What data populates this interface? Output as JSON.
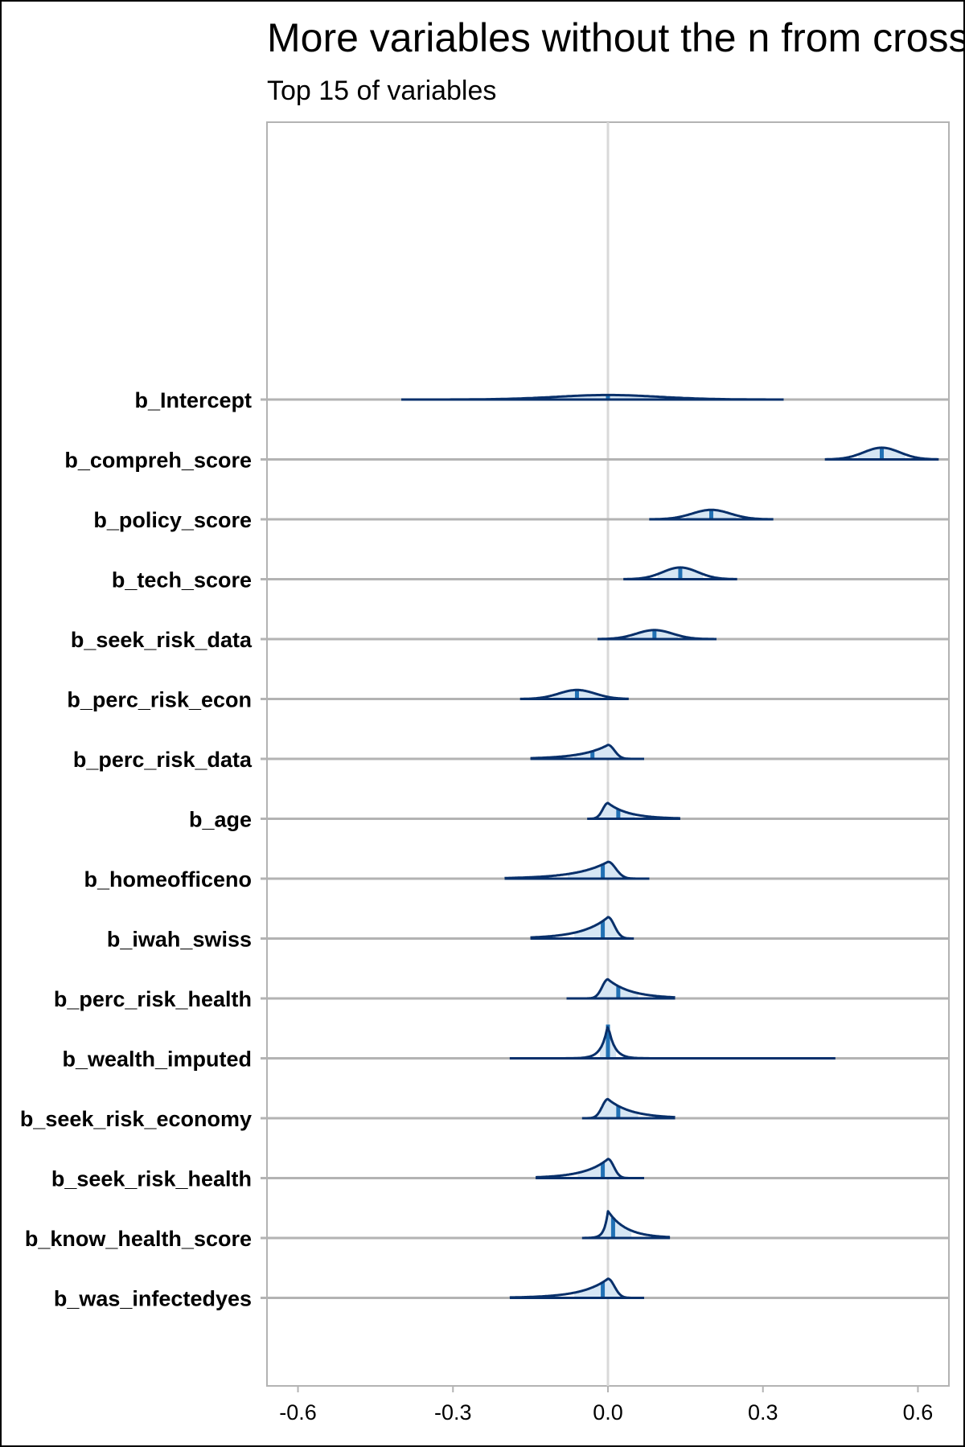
{
  "chart_data": {
    "type": "ridgeline-interval",
    "title": "More variables without the n from cross-validation",
    "subtitle": "Top 15 of variables",
    "xlim": [
      -0.66,
      0.66
    ],
    "x_ticks": [
      -0.6,
      -0.3,
      0.0,
      0.3,
      0.6
    ],
    "x_tick_labels": [
      "-0.6",
      "-0.3",
      "0.0",
      "0.3",
      "0.6"
    ],
    "reference_line": 0.0,
    "colors": {
      "line": "#08306b",
      "fill": "#d6e6f4",
      "median": "#2171b5",
      "grid": "#b3b3b3",
      "zero_line": "#d9d9d9",
      "panel_border": "#b3b3b3"
    },
    "variables": [
      {
        "name": "b_Intercept",
        "low": -0.4,
        "high": 0.34,
        "median": 0.0,
        "shape": "symmetric",
        "spread": 0.1,
        "height": 0.2
      },
      {
        "name": "b_compreh_score",
        "low": 0.42,
        "high": 0.64,
        "median": 0.53,
        "shape": "symmetric",
        "spread": 0.035,
        "height": 0.52
      },
      {
        "name": "b_policy_score",
        "low": 0.08,
        "high": 0.32,
        "median": 0.2,
        "shape": "symmetric",
        "spread": 0.037,
        "height": 0.42
      },
      {
        "name": "b_tech_score",
        "low": 0.03,
        "high": 0.25,
        "median": 0.14,
        "shape": "symmetric",
        "spread": 0.034,
        "height": 0.52
      },
      {
        "name": "b_seek_risk_data",
        "low": -0.02,
        "high": 0.21,
        "median": 0.09,
        "shape": "symmetric",
        "spread": 0.035,
        "height": 0.4
      },
      {
        "name": "b_perc_risk_econ",
        "low": -0.17,
        "high": 0.04,
        "median": -0.06,
        "shape": "symmetric",
        "spread": 0.035,
        "height": 0.4
      },
      {
        "name": "b_perc_risk_data",
        "low": -0.15,
        "high": 0.07,
        "median": -0.03,
        "shape": "left-peak",
        "spread": 0.05,
        "height": 0.62
      },
      {
        "name": "b_age",
        "low": -0.04,
        "high": 0.14,
        "median": 0.02,
        "shape": "right-peak",
        "spread": 0.04,
        "height": 0.7
      },
      {
        "name": "b_homeofficeno",
        "low": -0.2,
        "high": 0.08,
        "median": -0.01,
        "shape": "left-peak",
        "spread": 0.06,
        "height": 0.75
      },
      {
        "name": "b_iwah_swiss",
        "low": -0.15,
        "high": 0.05,
        "median": -0.01,
        "shape": "left-peak",
        "spread": 0.05,
        "height": 0.95
      },
      {
        "name": "b_perc_risk_health",
        "low": -0.08,
        "high": 0.13,
        "median": 0.02,
        "shape": "right-peak",
        "spread": 0.045,
        "height": 0.85
      },
      {
        "name": "b_wealth_imputed",
        "low": -0.19,
        "high": 0.44,
        "median": 0.0,
        "shape": "spike",
        "spread": 0.012,
        "height": 1.5
      },
      {
        "name": "b_seek_risk_economy",
        "low": -0.05,
        "high": 0.13,
        "median": 0.02,
        "shape": "right-peak",
        "spread": 0.045,
        "height": 0.85
      },
      {
        "name": "b_seek_risk_health",
        "low": -0.14,
        "high": 0.07,
        "median": -0.01,
        "shape": "left-peak",
        "spread": 0.045,
        "height": 0.85
      },
      {
        "name": "b_know_health_score",
        "low": -0.05,
        "high": 0.12,
        "median": 0.01,
        "shape": "right-spike",
        "spread": 0.035,
        "height": 1.2
      },
      {
        "name": "b_was_infectedyes",
        "low": -0.19,
        "high": 0.07,
        "median": -0.01,
        "shape": "left-peak",
        "spread": 0.05,
        "height": 0.85
      }
    ]
  }
}
